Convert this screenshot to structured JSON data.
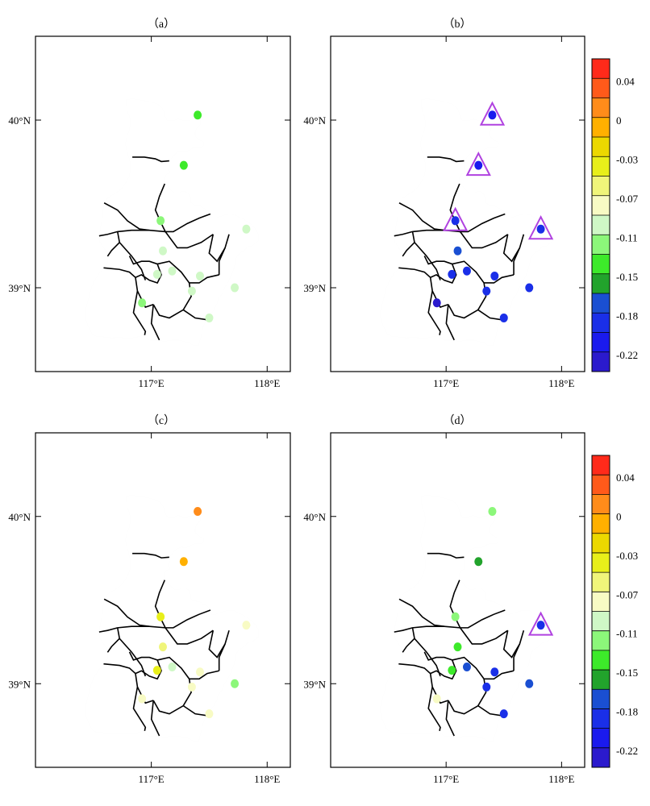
{
  "panels": [
    {
      "label": "（a）",
      "station_values": [
        -0.15,
        -0.145,
        -0.125,
        -0.105,
        -0.1,
        -0.11,
        -0.095,
        -0.1,
        -0.095,
        -0.095,
        -0.105,
        -0.13
      ],
      "triangles": [],
      "show_colorbar": false
    },
    {
      "label": "（b）",
      "station_values": [
        -0.215,
        -0.23,
        -0.205,
        -0.19,
        -0.195,
        -0.195,
        -0.2,
        -0.205,
        -0.21,
        -0.195,
        -0.205,
        -0.235
      ],
      "triangles": [
        0,
        1,
        2,
        10
      ],
      "show_colorbar": true
    },
    {
      "label": "（c）",
      "station_values": [
        0.015,
        0.0,
        -0.04,
        -0.06,
        -0.045,
        -0.1,
        -0.09,
        -0.09,
        -0.08,
        -0.12,
        -0.085,
        -0.09
      ],
      "triangles": [],
      "show_colorbar": false
    },
    {
      "label": "（d）",
      "station_values": [
        -0.115,
        -0.16,
        -0.125,
        -0.135,
        -0.14,
        -0.19,
        -0.2,
        -0.195,
        -0.195,
        -0.19,
        -0.205,
        -0.09
      ],
      "triangles": [
        10
      ],
      "show_colorbar": true
    }
  ],
  "map": {
    "lon_ticks": [
      {
        "value": 117,
        "label": "117°E"
      },
      {
        "value": 118,
        "label": "118°E"
      }
    ],
    "lat_ticks": [
      {
        "value": 39,
        "label": "39°N"
      },
      {
        "value": 40,
        "label": "40°N"
      }
    ],
    "extent": {
      "lon": [
        116.0,
        118.2
      ],
      "lat": [
        38.5,
        40.5
      ]
    }
  },
  "stations": [
    {
      "lon": 117.4,
      "lat": 40.03
    },
    {
      "lon": 117.28,
      "lat": 39.73
    },
    {
      "lon": 117.08,
      "lat": 39.4
    },
    {
      "lon": 117.1,
      "lat": 39.22
    },
    {
      "lon": 117.05,
      "lat": 39.08
    },
    {
      "lon": 117.18,
      "lat": 39.1
    },
    {
      "lon": 117.42,
      "lat": 39.07
    },
    {
      "lon": 117.35,
      "lat": 38.98
    },
    {
      "lon": 117.5,
      "lat": 38.82
    },
    {
      "lon": 117.72,
      "lat": 39.0
    },
    {
      "lon": 117.82,
      "lat": 39.35
    },
    {
      "lon": 116.92,
      "lat": 38.91
    }
  ],
  "colorbar": {
    "colors": [
      "#ff2a1a",
      "#ff5a1a",
      "#ff8c1a",
      "#ffb000",
      "#ecd800",
      "#e8ef1a",
      "#f0f57a",
      "#f8fbc4",
      "#cff8c6",
      "#8cf77a",
      "#3dea2a",
      "#22a32c",
      "#1a4fd2",
      "#1a2fe8",
      "#1a1aee",
      "#2b1acd"
    ],
    "labels": [
      "0.04",
      "0",
      "-0.03",
      "-0.07",
      "-0.11",
      "-0.15",
      "-0.18",
      "-0.22"
    ],
    "label_positions": [
      2,
      4,
      6,
      8,
      10,
      12,
      14,
      16
    ],
    "max_value": 0.075,
    "min_value": -0.255
  },
  "legend": {
    "triangle_color": "#b042e0"
  }
}
